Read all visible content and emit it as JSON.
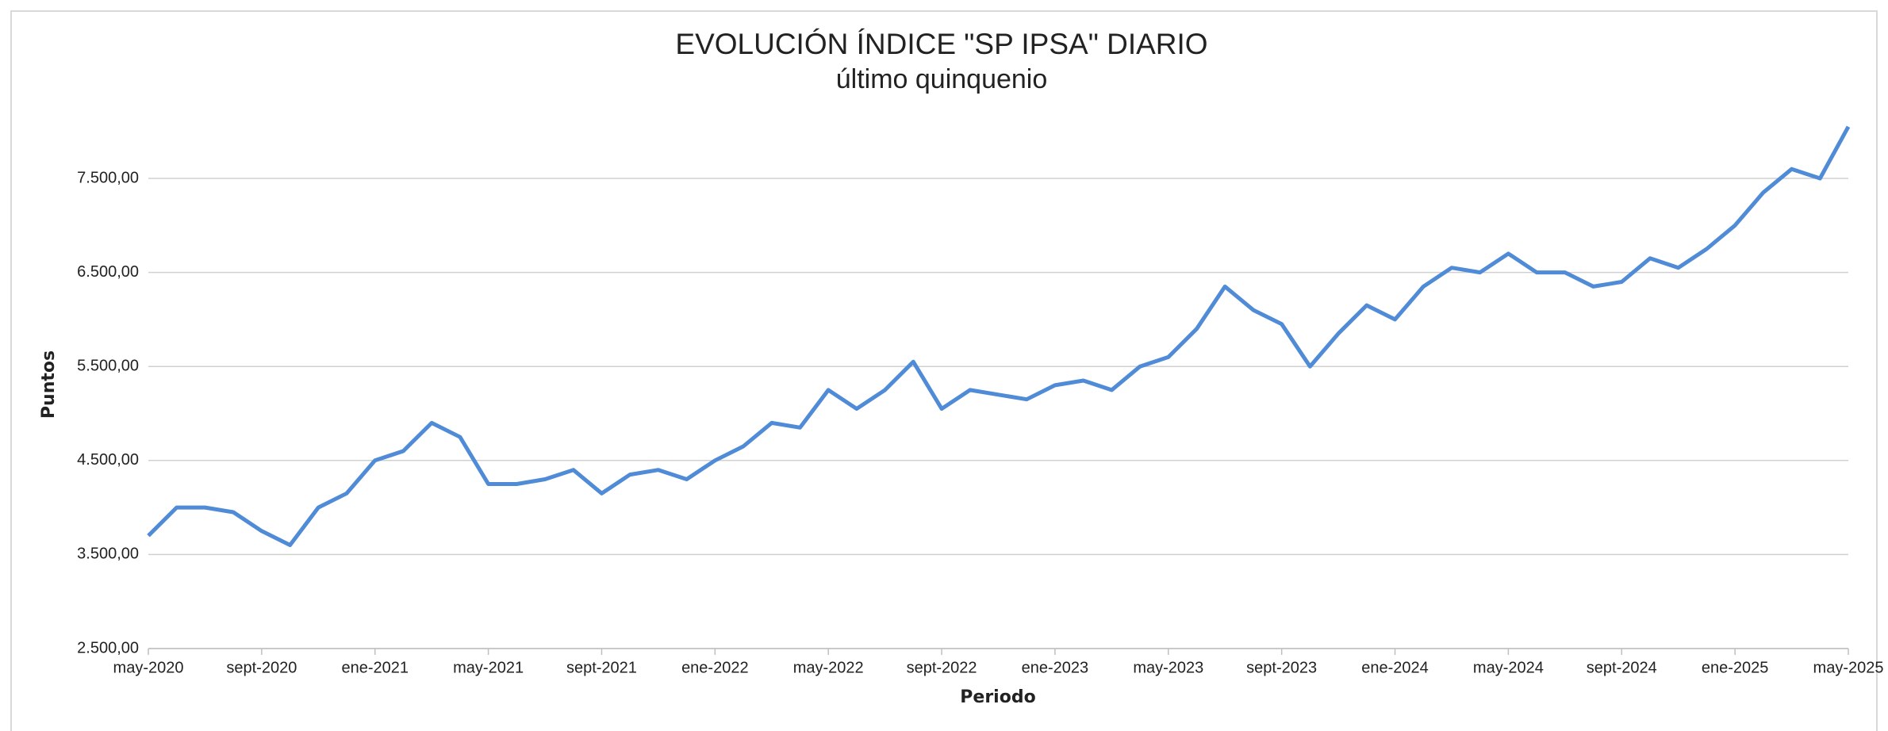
{
  "chart_data": {
    "type": "line",
    "title": "EVOLUCIÓN ÍNDICE \"SP IPSA\" DIARIO",
    "subtitle": "último quinquenio",
    "y_label": "Puntos",
    "x_label": "Periodo",
    "categories": [
      "may-2020",
      null,
      null,
      null,
      "sept-2020",
      null,
      null,
      null,
      "ene-2021",
      null,
      null,
      null,
      "may-2021",
      null,
      null,
      null,
      "sept-2021",
      null,
      null,
      null,
      "ene-2022",
      null,
      null,
      null,
      "may-2022",
      null,
      null,
      null,
      "sept-2022",
      null,
      null,
      null,
      "ene-2023",
      null,
      null,
      null,
      "may-2023",
      null,
      null,
      null,
      "sept-2023",
      null,
      null,
      null,
      "ene-2024",
      null,
      null,
      null,
      "may-2024",
      null,
      null,
      null,
      "sept-2024",
      null,
      null,
      null,
      "ene-2025",
      null,
      null,
      null,
      "may-2025"
    ],
    "series": [
      {
        "name": "SP IPSA",
        "color": "#4f8bd6",
        "values": [
          3700,
          4000,
          4000,
          3950,
          3750,
          3600,
          4000,
          4150,
          4500,
          4600,
          4900,
          4750,
          4250,
          4250,
          4300,
          4400,
          4150,
          4350,
          4400,
          4300,
          4500,
          4650,
          4900,
          4850,
          5250,
          5050,
          5250,
          5550,
          5050,
          5250,
          5200,
          5150,
          5300,
          5350,
          5250,
          5500,
          5600,
          5900,
          6350,
          6100,
          5950,
          5500,
          5850,
          6150,
          6000,
          6350,
          6550,
          6500,
          6700,
          6500,
          6500,
          6350,
          6400,
          6650,
          6550,
          6750,
          7000,
          7350,
          7600,
          7500,
          8050
        ]
      }
    ],
    "ylim": [
      2500,
      8200
    ],
    "yticks": [
      {
        "value": 2500,
        "label": "2.500,00"
      },
      {
        "value": 3500,
        "label": "3.500,00"
      },
      {
        "value": 4500,
        "label": "4.500,00"
      },
      {
        "value": 5500,
        "label": "5.500,00"
      },
      {
        "value": 6500,
        "label": "6.500,00"
      },
      {
        "value": 7500,
        "label": "7.500,00"
      }
    ],
    "grid": true
  }
}
